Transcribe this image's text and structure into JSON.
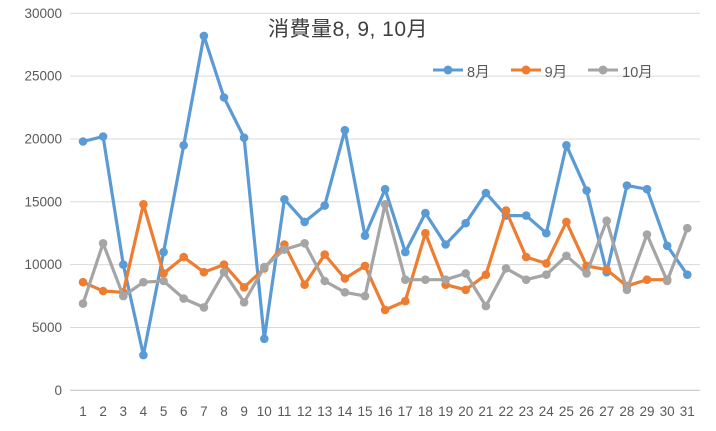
{
  "chart_data": {
    "type": "line",
    "title": "消費量8, 9, 10月",
    "x_labels": [
      "1",
      "2",
      "3",
      "4",
      "5",
      "6",
      "7",
      "8",
      "9",
      "10",
      "11",
      "12",
      "13",
      "14",
      "15",
      "16",
      "17",
      "18",
      "19",
      "20",
      "21",
      "22",
      "23",
      "24",
      "25",
      "26",
      "27",
      "28",
      "29",
      "30",
      "31"
    ],
    "ylim": [
      0,
      30000
    ],
    "ytick_step": 5000,
    "grid": true,
    "legend_position": "top-right",
    "background": "#FFFFFF",
    "gridline_color": "#D9D9D9",
    "axis_line_color": "#BFBFBF",
    "tick_label_color": "#595959",
    "title_color": "#404040",
    "legend_text_color": "#595959",
    "series": [
      {
        "name": "8月",
        "color": "#5B9BD5",
        "values": [
          19800,
          20200,
          10000,
          2800,
          11000,
          19500,
          28200,
          23300,
          20100,
          4100,
          15200,
          13400,
          14700,
          20700,
          12300,
          16000,
          11000,
          14100,
          11600,
          13300,
          15700,
          13900,
          13900,
          12500,
          19500,
          15900,
          9400,
          16300,
          16000,
          11500,
          9200
        ]
      },
      {
        "name": "9月",
        "color": "#ED7D31",
        "values": [
          8600,
          7900,
          7800,
          14800,
          9300,
          10600,
          9400,
          10000,
          8200,
          9700,
          11600,
          8400,
          10800,
          8900,
          9900,
          6400,
          7100,
          12500,
          8400,
          8000,
          9200,
          14300,
          10600,
          10100,
          13400,
          9900,
          9600,
          8300,
          8800,
          8800,
          null
        ]
      },
      {
        "name": "10月",
        "color": "#A5A5A5",
        "values": [
          6900,
          11700,
          7500,
          8600,
          8700,
          7300,
          6600,
          9400,
          7000,
          9800,
          11200,
          11700,
          8700,
          7800,
          7500,
          14800,
          8800,
          8800,
          8800,
          9300,
          6700,
          9700,
          8800,
          9200,
          10700,
          9300,
          13500,
          8000,
          12400,
          8700,
          12900
        ]
      }
    ]
  }
}
